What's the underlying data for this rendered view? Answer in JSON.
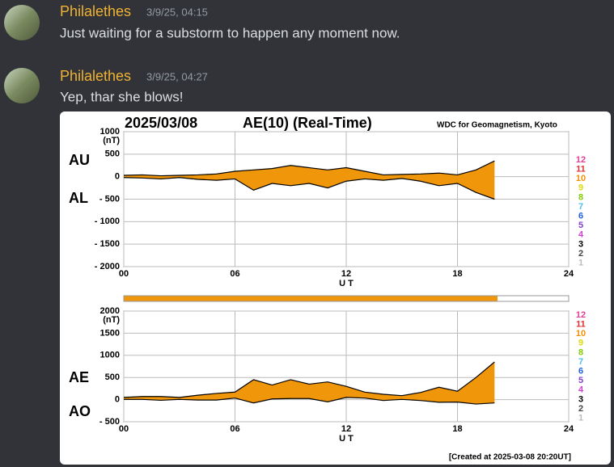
{
  "messages": [
    {
      "author": "Philalethes",
      "timestamp": "3/9/25, 04:15",
      "text": "Just waiting for a substorm to happen any moment now."
    },
    {
      "author": "Philalethes",
      "timestamp": "3/9/25, 04:27",
      "text": "Yep, thar she blows!"
    }
  ],
  "embed": {
    "date": "2025/03/08",
    "title": "AE(10) (Real-Time)",
    "source": "WDC for Geomagnetism, Kyoto",
    "footer": "[Created at 2025-03-08 20:20UT]",
    "scale_labels": [
      {
        "text": "12",
        "color": "#e0409a"
      },
      {
        "text": "11",
        "color": "#e03030"
      },
      {
        "text": "10",
        "color": "#f09000"
      },
      {
        "text": "9",
        "color": "#e0d800"
      },
      {
        "text": "8",
        "color": "#80cc00"
      },
      {
        "text": "7",
        "color": "#50c0f0"
      },
      {
        "text": "6",
        "color": "#2060e0"
      },
      {
        "text": "5",
        "color": "#8040d0"
      },
      {
        "text": "4",
        "color": "#d040d0"
      },
      {
        "text": "3",
        "color": "#000000"
      },
      {
        "text": "2",
        "color": "#444444"
      },
      {
        "text": "1",
        "color": "#bbbbbb"
      }
    ],
    "panels": [
      {
        "unit": "(nT)",
        "xlabel": "U T",
        "fill": "#f0960a",
        "xlim": [
          0,
          24
        ],
        "xticks": [
          {
            "value": 0,
            "label": "00"
          },
          {
            "value": 6,
            "label": "06"
          },
          12,
          18,
          24
        ],
        "ylim": [
          -2000,
          1000
        ],
        "yticks": [
          1000,
          500,
          0,
          {
            "value": -500,
            "label": "- 500"
          },
          {
            "value": -1000,
            "label": "- 1000"
          },
          {
            "value": -1500,
            "label": "- 1500"
          },
          {
            "value": -2000,
            "label": "- 2000"
          }
        ],
        "x": [
          0,
          1,
          2,
          3,
          4,
          5,
          6,
          7,
          8,
          9,
          10,
          11,
          12,
          13,
          14,
          15,
          16,
          17,
          18,
          19,
          20
        ],
        "series": [
          {
            "name": "AU",
            "values": [
              30,
              40,
              20,
              30,
              40,
              60,
              120,
              150,
              180,
              250,
              200,
              150,
              200,
              120,
              40,
              50,
              60,
              80,
              40,
              150,
              350
            ]
          },
          {
            "name": "AL",
            "values": [
              -20,
              -30,
              -50,
              -20,
              -60,
              -80,
              -50,
              -300,
              -150,
              -200,
              -150,
              -250,
              -100,
              -50,
              -80,
              -40,
              -100,
              -200,
              -150,
              -350,
              -500
            ]
          }
        ]
      },
      {
        "unit": "(nT)",
        "xlabel": "U T",
        "fill": "#f0960a",
        "xlim": [
          0,
          24
        ],
        "xticks": [
          {
            "value": 0,
            "label": "00"
          },
          {
            "value": 6,
            "label": "06"
          },
          12,
          18,
          24
        ],
        "ylim": [
          -500,
          2000
        ],
        "yticks": [
          2000,
          1500,
          1000,
          500,
          0,
          {
            "value": -500,
            "label": "- 500"
          }
        ],
        "x": [
          0,
          1,
          2,
          3,
          4,
          5,
          6,
          7,
          8,
          9,
          10,
          11,
          12,
          13,
          14,
          15,
          16,
          17,
          18,
          19,
          20
        ],
        "series": [
          {
            "name": "AE",
            "values": [
              50,
              70,
              70,
              50,
              100,
              140,
              170,
              450,
              330,
              450,
              350,
              400,
              300,
              170,
              120,
              90,
              160,
              280,
              190,
              500,
              850
            ]
          },
          {
            "name": "AO",
            "values": [
              5,
              5,
              -15,
              5,
              -10,
              -10,
              35,
              -75,
              15,
              25,
              25,
              -50,
              50,
              35,
              -20,
              5,
              -20,
              -60,
              -55,
              -100,
              -75
            ]
          }
        ]
      }
    ]
  }
}
